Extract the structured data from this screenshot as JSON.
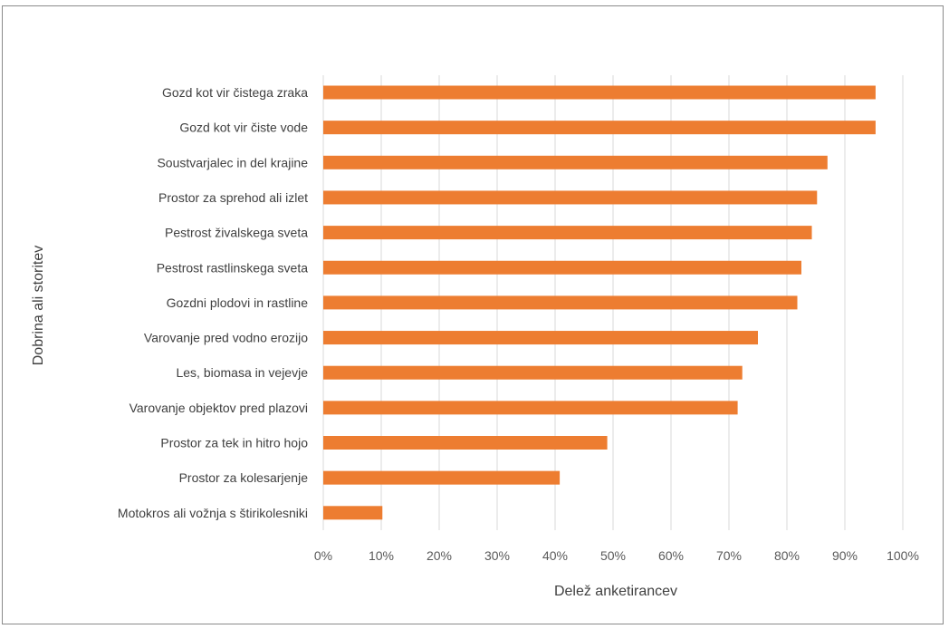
{
  "chart_data": {
    "type": "bar",
    "orientation": "horizontal",
    "categories": [
      "Gozd kot vir čistega zraka",
      "Gozd kot vir čiste vode",
      "Soustvarjalec in del krajine",
      "Prostor za sprehod ali izlet",
      "Pestrost živalskega sveta",
      "Pestrost rastlinskega sveta",
      "Gozdni plodovi in rastline",
      "Varovanje pred vodno erozijo",
      "Les, biomasa in vejevje",
      "Varovanje objektov pred plazovi",
      "Prostor za tek in hitro hojo",
      "Prostor za kolesarjenje",
      "Motokros ali vožnja s štirikolesniki"
    ],
    "values": [
      95.3,
      95.3,
      87.0,
      85.2,
      84.3,
      82.5,
      81.8,
      75.0,
      72.3,
      71.5,
      49.0,
      40.8,
      10.2
    ],
    "xlabel": "Delež anketirancev",
    "ylabel": "Dobrina ali storitev",
    "xlim": [
      0,
      100
    ],
    "x_ticks": [
      "0%",
      "10%",
      "20%",
      "30%",
      "40%",
      "50%",
      "60%",
      "70%",
      "80%",
      "90%",
      "100%"
    ],
    "grid": "vertical",
    "bar_color": "#ed7d31"
  }
}
